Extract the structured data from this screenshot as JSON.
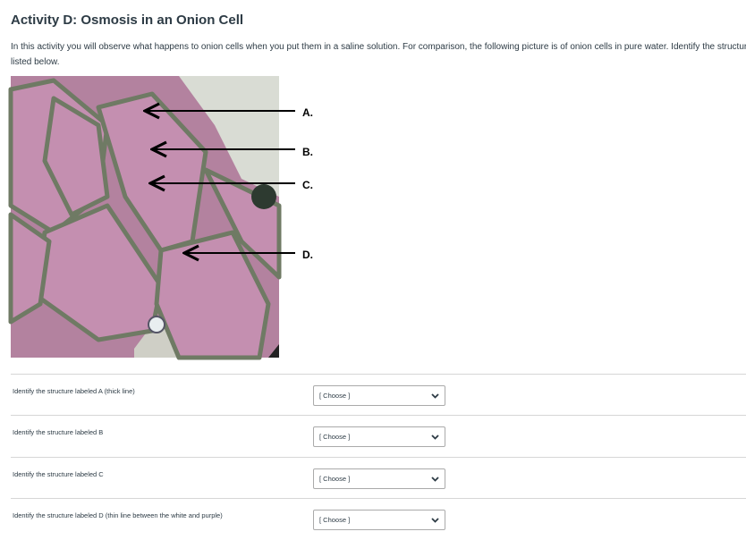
{
  "header": {
    "title": "Activity D: Osmosis in an Onion Cell",
    "intro": "In this activity you will observe what happens to onion cells when you put them in a saline solution. For comparison, the following picture is of onion cells in pure water. Identify the structures listed below."
  },
  "figure": {
    "labels": [
      "A.",
      "B.",
      "C.",
      "D."
    ]
  },
  "questions": [
    {
      "text": "Identify the structure labeled A (thick line)",
      "placeholder": "[ Choose ]"
    },
    {
      "text": "Identify the structure labeled B",
      "placeholder": "[ Choose ]"
    },
    {
      "text": "Identify the structure labeled C",
      "placeholder": "[ Choose ]"
    },
    {
      "text": "Identify the structure labeled D (thin line between the white and purple)",
      "placeholder": "[ Choose ]"
    }
  ]
}
